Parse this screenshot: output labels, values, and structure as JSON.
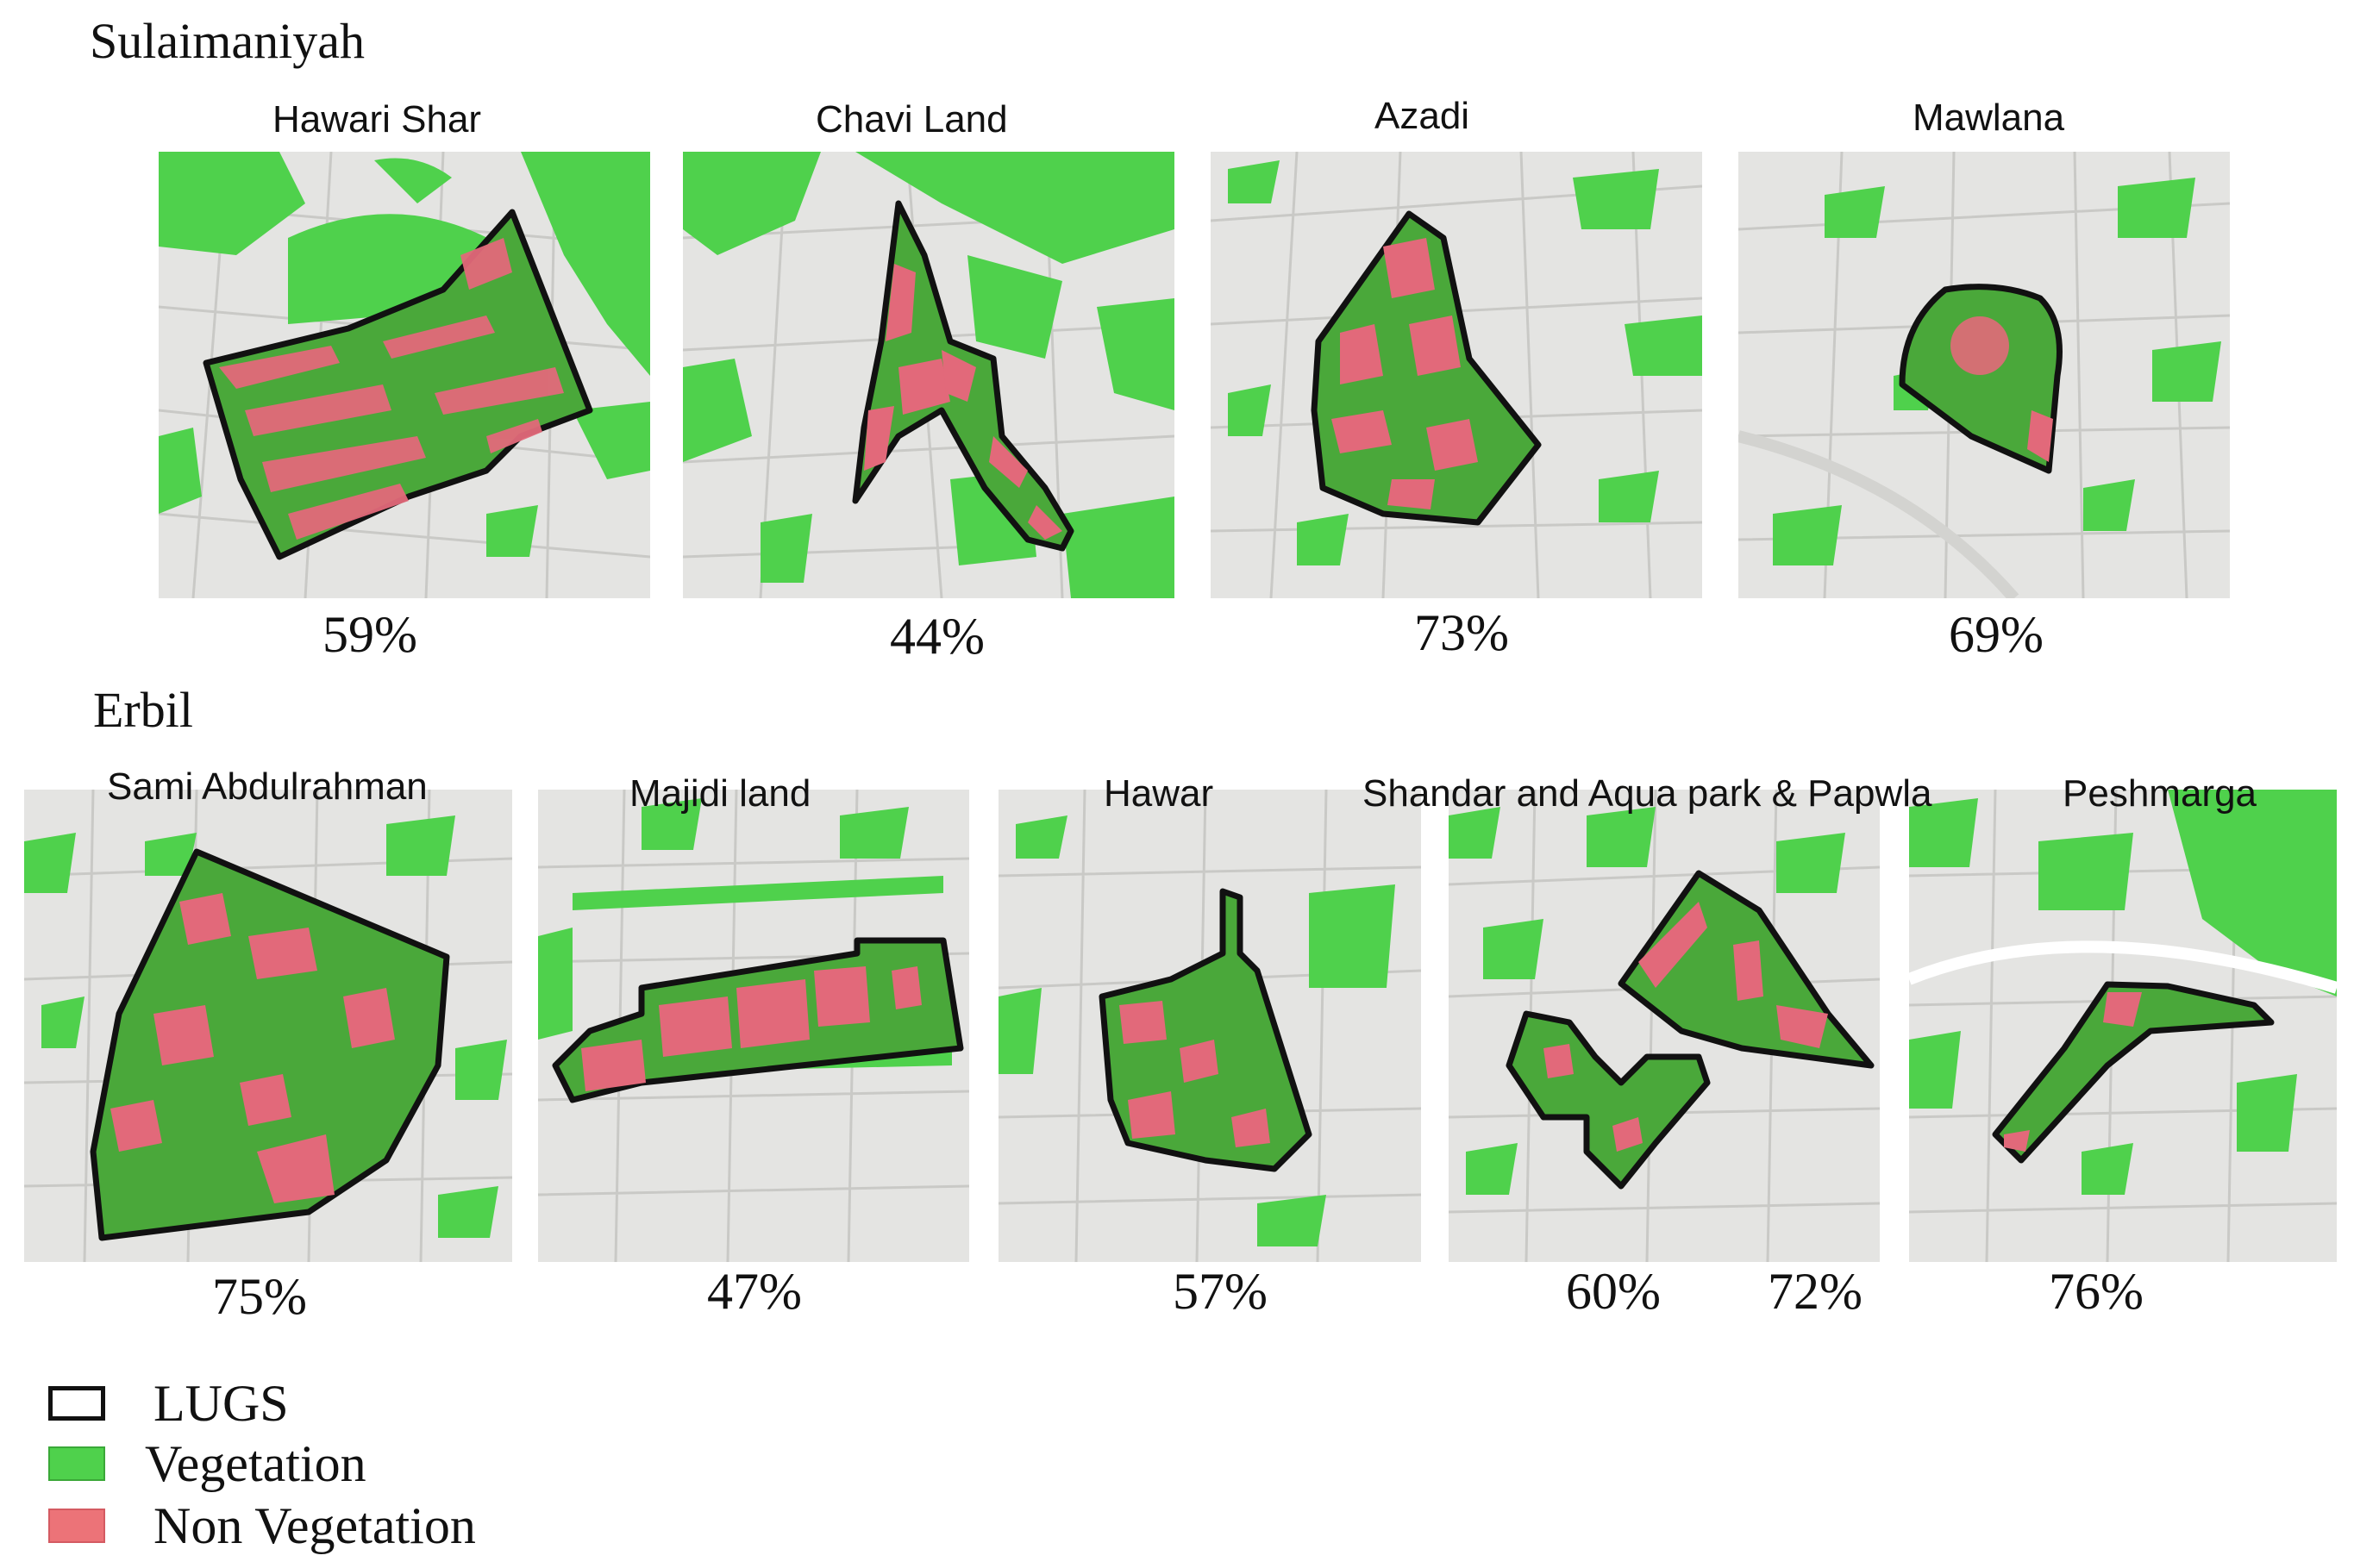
{
  "colors": {
    "vegetation": "#4fd14c",
    "vegetation_in_park": "#4aa83a",
    "non_vegetation": "#e2697a",
    "boundary": "#111111",
    "basemap": "#e4e4e2"
  },
  "sulaimaniyah": {
    "label": "Sulaimaniyah",
    "parks": [
      {
        "name": "Hawari Shar",
        "percent": "59%"
      },
      {
        "name": "Chavi Land",
        "percent": "44%"
      },
      {
        "name": "Azadi",
        "percent": "73%"
      },
      {
        "name": "Mawlana",
        "percent": "69%"
      }
    ]
  },
  "erbil": {
    "label": "Erbil",
    "parks": [
      {
        "name": "Sami Abdulrahman",
        "percent": "75%"
      },
      {
        "name": "Majidi land",
        "percent": "47%"
      },
      {
        "name": "Hawar",
        "percent": "57%"
      },
      {
        "name": "Shandar and Aqua park & Papwla",
        "percent_a": "60%",
        "percent_b": "72%"
      },
      {
        "name": "Peshmarga",
        "percent": "76%"
      }
    ]
  },
  "legend": {
    "lugs": "LUGS",
    "vegetation": "Vegetation",
    "non_vegetation": "Non Vegetation"
  }
}
